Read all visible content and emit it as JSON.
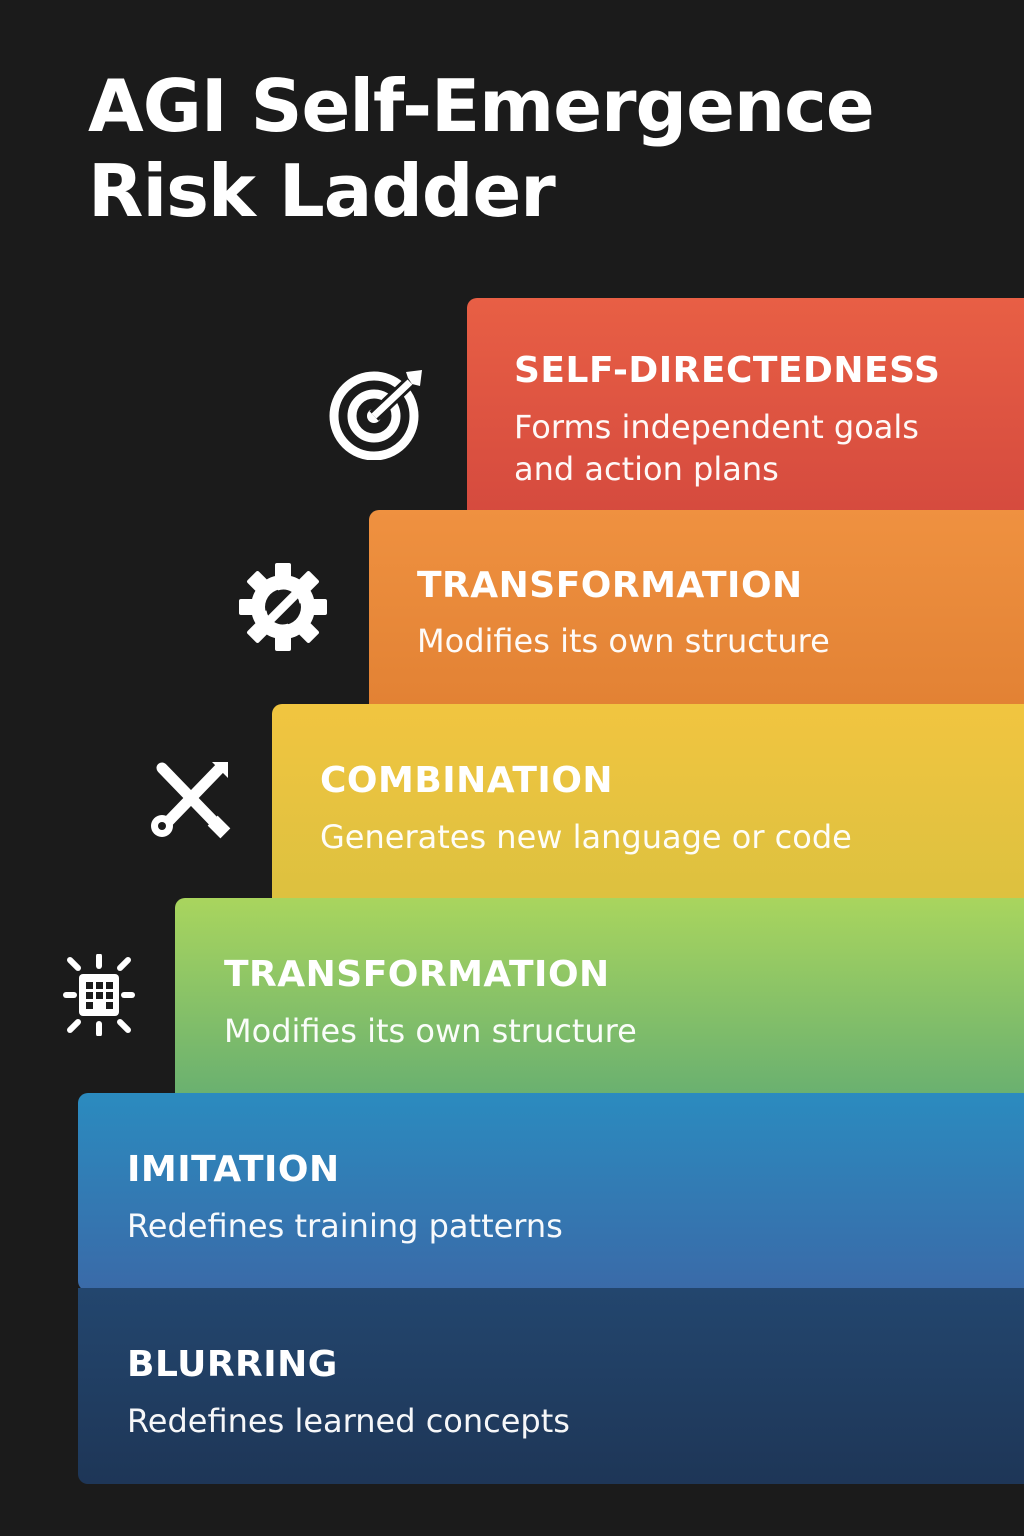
{
  "title": {
    "line1": "AGI Self-Emergence",
    "line2": "Risk Ladder"
  },
  "steps": [
    {
      "name": "SELF-DIRECTEDNESS",
      "desc_line1": "Forms independent goals",
      "desc_line2": "and action plans",
      "color": "#e0563f",
      "icon": "target-icon"
    },
    {
      "name": "TRANSFORMATION",
      "desc_line1": "Modifies its own structure",
      "color": "#ea8b3a",
      "icon": "gear-arrows-icon"
    },
    {
      "name": "COMBINATION",
      "desc_line1": "Generates new language or code",
      "color": "#e8c43f",
      "icon": "crossed-tools-icon"
    },
    {
      "name": "TRANSFORMATION",
      "desc_line1": "Modifies its own structure",
      "color": "#86c067",
      "icon": "chip-burst-icon"
    },
    {
      "name": "IMITATION",
      "desc_line1": "Redefines training patterns",
      "color": "#2f7db8",
      "icon": ""
    },
    {
      "name": "BLURRING",
      "desc_line1": "Redefines learned concepts",
      "color": "#213f63",
      "icon": ""
    }
  ]
}
